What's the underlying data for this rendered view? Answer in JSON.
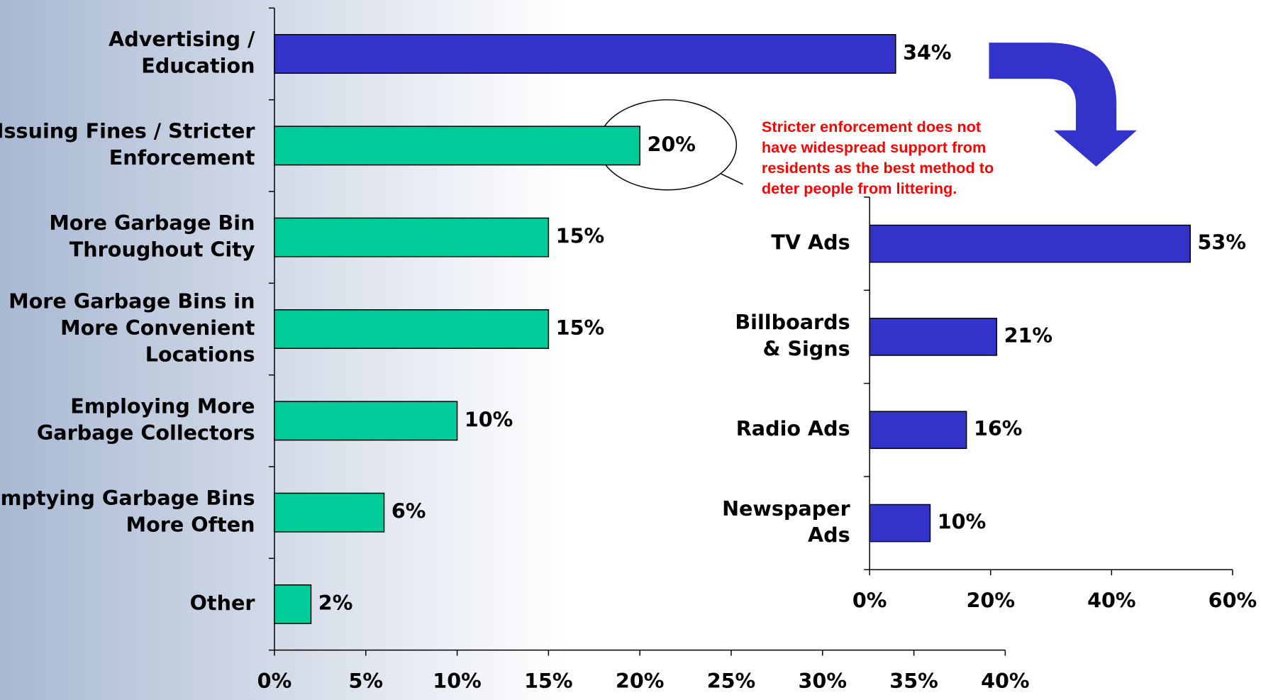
{
  "chart_data": [
    {
      "type": "bar",
      "orientation": "horizontal",
      "categories": [
        "Advertising /\nEducation",
        "Issuing Fines / Stricter\nEnforcement",
        "More Garbage Bin\nThroughout City",
        "More Garbage Bins in\nMore Convenient\nLocations",
        "Employing More\nGarbage Collectors",
        "Emptying Garbage Bins\nMore Often",
        "Other"
      ],
      "values": [
        34,
        20,
        15,
        15,
        10,
        6,
        2
      ],
      "value_labels": [
        "34%",
        "20%",
        "15%",
        "15%",
        "10%",
        "6%",
        "2%"
      ],
      "colors": [
        "#3333cc",
        "#00cc99",
        "#00cc99",
        "#00cc99",
        "#00cc99",
        "#00cc99",
        "#00cc99"
      ],
      "xlim": [
        0,
        40
      ],
      "xticks": [
        {
          "value": 0,
          "label": "0%"
        },
        {
          "value": 5,
          "label": "5%"
        },
        {
          "value": 10,
          "label": "10%"
        },
        {
          "value": 15,
          "label": "15%"
        },
        {
          "value": 20,
          "label": "20%"
        },
        {
          "value": 25,
          "label": "25%"
        },
        {
          "value": 30,
          "label": "30%"
        },
        {
          "value": 35,
          "label": "35%"
        },
        {
          "value": 40,
          "label": "40%"
        }
      ],
      "annotation": "Stricter enforcement does not\nhave widespread support from\nresidents as the best method to\ndeter people from littering."
    },
    {
      "type": "bar",
      "orientation": "horizontal",
      "categories": [
        "TV Ads",
        "Billboards\n& Signs",
        "Radio Ads",
        "Newspaper\nAds"
      ],
      "values": [
        53,
        21,
        16,
        10
      ],
      "value_labels": [
        "53%",
        "21%",
        "16%",
        "10%"
      ],
      "colors": [
        "#3333cc",
        "#3333cc",
        "#3333cc",
        "#3333cc"
      ],
      "xlim": [
        0,
        60
      ],
      "xticks": [
        {
          "value": 0,
          "label": "0%"
        },
        {
          "value": 20,
          "label": "20%"
        },
        {
          "value": 40,
          "label": "40%"
        },
        {
          "value": 60,
          "label": "60%"
        }
      ]
    }
  ]
}
